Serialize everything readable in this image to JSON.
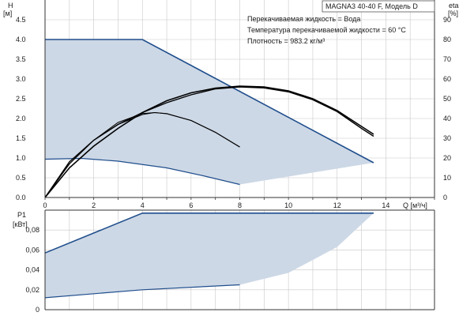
{
  "model_label": "MAGNA3 40-40 F, Модель D",
  "conditions": [
    "Перекачиваемая жидкость = Вода",
    "Температура перекачиваемой жидкости = 60 °C",
    "Плотность = 983.2 кг/м³"
  ],
  "colors": {
    "envelope_fill": "#cdd8e6",
    "envelope_line": "#1f4e8c",
    "curve": "#000000",
    "grid": "#c8c8c8",
    "text": "#1a1a1a"
  },
  "chart_data": [
    {
      "type": "line",
      "title": "",
      "xlabel": "Q [м³/ч]",
      "x_ticks": [
        "0",
        "2",
        "4",
        "6",
        "8",
        "10",
        "12",
        "14"
      ],
      "x_tick_values": [
        0,
        2,
        4,
        6,
        8,
        10,
        12,
        14
      ],
      "xlim": [
        0,
        16
      ],
      "grid": true,
      "left_axis": {
        "label_line1": "H",
        "label_line2": "[м]",
        "ylim": [
          0,
          5
        ],
        "ticks": [
          "0.0",
          "0.5",
          "1.0",
          "1.5",
          "2.0",
          "2.5",
          "3.0",
          "3.5",
          "4.0",
          "4.5"
        ],
        "tick_values": [
          0,
          0.5,
          1,
          1.5,
          2,
          2.5,
          3,
          3.5,
          4,
          4.5
        ]
      },
      "right_axis": {
        "label_line1": "eta",
        "label_line2": "[%]",
        "ylim": [
          0,
          100
        ],
        "ticks": [
          "0",
          "10",
          "20",
          "30",
          "40",
          "50",
          "60",
          "70",
          "80",
          "90"
        ],
        "tick_values": [
          0,
          10,
          20,
          30,
          40,
          50,
          60,
          70,
          80,
          90
        ]
      },
      "series": [
        {
          "kind": "envelope_upper",
          "values": [
            [
              0,
              4.0
            ],
            [
              4,
              4.0
            ],
            [
              13.5,
              0.88
            ]
          ]
        },
        {
          "kind": "envelope_lower",
          "values": [
            [
              0,
              0.97
            ],
            [
              1.5,
              0.99
            ],
            [
              3,
              0.92
            ],
            [
              5,
              0.75
            ],
            [
              6.5,
              0.55
            ],
            [
              8,
              0.33
            ]
          ]
        },
        {
          "kind": "head_max",
          "values": [
            [
              0,
              0.0
            ],
            [
              1,
              0.75
            ],
            [
              2,
              1.3
            ],
            [
              3,
              1.75
            ],
            [
              4,
              2.15
            ],
            [
              5,
              2.45
            ],
            [
              6,
              2.65
            ],
            [
              7,
              2.77
            ],
            [
              8,
              2.82
            ],
            [
              9,
              2.8
            ],
            [
              10,
              2.7
            ],
            [
              11,
              2.5
            ],
            [
              12,
              2.2
            ],
            [
              13,
              1.8
            ],
            [
              13.5,
              1.6
            ]
          ]
        },
        {
          "kind": "head_mid",
          "values": [
            [
              0,
              0.0
            ],
            [
              1,
              0.85
            ],
            [
              2,
              1.45
            ],
            [
              3,
              1.85
            ],
            [
              4,
              2.1
            ],
            [
              4.5,
              2.15
            ],
            [
              5,
              2.12
            ],
            [
              6,
              1.95
            ],
            [
              7,
              1.65
            ],
            [
              8,
              1.28
            ]
          ]
        },
        {
          "kind": "eta_max",
          "values": [
            [
              0,
              0
            ],
            [
              1,
              18
            ],
            [
              2,
              29
            ],
            [
              3,
              37
            ],
            [
              4,
              43
            ],
            [
              5,
              48
            ],
            [
              6,
              52
            ],
            [
              7,
              55
            ],
            [
              8,
              56
            ],
            [
              9,
              55.5
            ],
            [
              10,
              53.5
            ],
            [
              11,
              49.5
            ],
            [
              12,
              43.5
            ],
            [
              13,
              35
            ],
            [
              13.5,
              31
            ]
          ]
        },
        {
          "kind": "eta_mid",
          "values": [
            [
              0,
              0
            ],
            [
              1,
              17
            ],
            [
              2,
              29
            ],
            [
              3,
              38
            ],
            [
              4,
              42.5
            ],
            [
              4.5,
              43
            ],
            [
              5,
              42.5
            ],
            [
              6,
              39
            ],
            [
              7,
              33
            ],
            [
              8,
              25.5
            ]
          ]
        }
      ]
    },
    {
      "type": "line",
      "title": "",
      "xlabel": "",
      "xlim": [
        0,
        16
      ],
      "grid": true,
      "left_axis": {
        "label_line1": "P1",
        "label_line2": "[кВт]",
        "ylim": [
          0,
          0.1
        ],
        "ticks": [
          "0",
          "0,02",
          "0,04",
          "0,06",
          "0,08"
        ],
        "tick_values": [
          0,
          0.02,
          0.04,
          0.06,
          0.08
        ]
      },
      "series": [
        {
          "kind": "envelope_upper",
          "values": [
            [
              0,
              0.057
            ],
            [
              4,
              0.097
            ],
            [
              13.5,
              0.097
            ]
          ]
        },
        {
          "kind": "envelope_lower",
          "values": [
            [
              0,
              0.012
            ],
            [
              4,
              0.02
            ],
            [
              8,
              0.025
            ]
          ]
        },
        {
          "kind": "envelope_closing",
          "values": [
            [
              8,
              0.025
            ],
            [
              10,
              0.037
            ],
            [
              12,
              0.063
            ],
            [
              13.5,
              0.097
            ]
          ]
        }
      ]
    }
  ]
}
